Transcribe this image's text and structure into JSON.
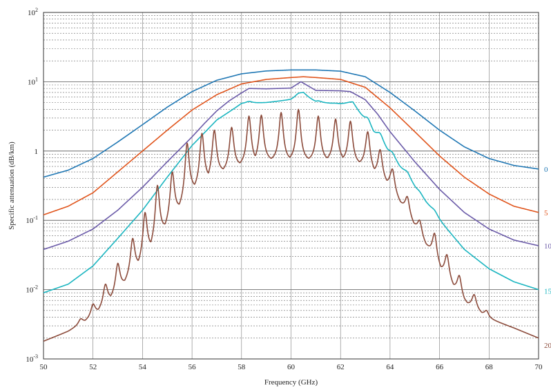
{
  "chart_data": {
    "type": "line",
    "title": "",
    "xlabel": "Frequency (GHz)",
    "ylabel": "Specific attenuation (dB/km)",
    "xlim": [
      50,
      70
    ],
    "ylim": [
      0.001,
      100
    ],
    "y_scale": "log",
    "grid": true,
    "x_ticks": [
      "50",
      "52",
      "54",
      "56",
      "58",
      "60",
      "62",
      "64",
      "66",
      "68",
      "70"
    ],
    "x_tick_values": [
      50,
      52,
      54,
      56,
      58,
      60,
      62,
      64,
      66,
      68,
      70
    ],
    "y_ticks": [
      {
        "value": 100,
        "base": "10",
        "exp": "2"
      },
      {
        "value": 10,
        "base": "10",
        "exp": "1"
      },
      {
        "value": 1,
        "base": "1",
        "exp": ""
      },
      {
        "value": 0.1,
        "base": "10",
        "exp": "-1"
      },
      {
        "value": 0.01,
        "base": "10",
        "exp": "-2"
      },
      {
        "value": 0.001,
        "base": "10",
        "exp": "-3"
      }
    ],
    "series": [
      {
        "name": "0",
        "color": "#1f77b4",
        "x": [
          50,
          51,
          52,
          53,
          54,
          55,
          56,
          57,
          58,
          59,
          60,
          61,
          62,
          63,
          64,
          65,
          66,
          67,
          68,
          69,
          70
        ],
        "y": [
          0.42,
          0.53,
          0.78,
          1.35,
          2.4,
          4.3,
          7.2,
          10.5,
          13.0,
          14.3,
          14.8,
          14.8,
          14.2,
          11.8,
          7.0,
          3.8,
          2.0,
          1.15,
          0.78,
          0.62,
          0.55
        ]
      },
      {
        "name": "5",
        "color": "#e0531a",
        "x": [
          50,
          51,
          52,
          53,
          54,
          55,
          56,
          57,
          58,
          59,
          60,
          60.5,
          61,
          62,
          63,
          64,
          65,
          66,
          67,
          68,
          69,
          70
        ],
        "y": [
          0.12,
          0.16,
          0.25,
          0.5,
          1.0,
          2.0,
          3.9,
          6.5,
          9.3,
          10.8,
          11.5,
          11.8,
          11.5,
          10.8,
          8.3,
          4.2,
          1.9,
          0.85,
          0.42,
          0.24,
          0.16,
          0.13
        ]
      },
      {
        "name": "10",
        "color": "#6a5aa8",
        "x": [
          50,
          51,
          52,
          53,
          54,
          55,
          56,
          56.5,
          57,
          57.5,
          58,
          58.3,
          59,
          60,
          60.4,
          61,
          62,
          62.4,
          63,
          63.5,
          64,
          65,
          66,
          67,
          68,
          69,
          70
        ],
        "y": [
          0.038,
          0.05,
          0.075,
          0.14,
          0.3,
          0.7,
          1.6,
          2.5,
          3.8,
          5.3,
          6.9,
          8.0,
          7.9,
          8.1,
          10.0,
          7.5,
          7.4,
          7.2,
          5.5,
          3.4,
          1.9,
          0.7,
          0.28,
          0.13,
          0.075,
          0.052,
          0.043
        ]
      },
      {
        "name": "15",
        "color": "#1ab5c0",
        "x": [
          50,
          51,
          52,
          53,
          54,
          55,
          56,
          57,
          58,
          59,
          60,
          60.5,
          61,
          62,
          62.5,
          63,
          64,
          65,
          66,
          67,
          68,
          69,
          70
        ],
        "y": [
          0.009,
          0.012,
          0.022,
          0.055,
          0.14,
          0.42,
          1.2,
          2.8,
          4.8,
          5.0,
          5.5,
          6.8,
          5.0,
          4.8,
          5.0,
          2.5,
          0.9,
          0.3,
          0.1,
          0.038,
          0.02,
          0.013,
          0.01
        ]
      },
      {
        "name": "20",
        "color": "#8b4a3a",
        "x": [
          50,
          51,
          52,
          53,
          54,
          55,
          56,
          57,
          58,
          59,
          60,
          61,
          62,
          63,
          64,
          65,
          66,
          67,
          68,
          69,
          70
        ],
        "y": [
          0.0018,
          0.0025,
          0.004,
          0.009,
          0.025,
          0.08,
          0.25,
          0.45,
          0.6,
          0.7,
          0.7,
          0.7,
          0.7,
          0.6,
          0.3,
          0.08,
          0.02,
          0.0065,
          0.0038,
          0.0028,
          0.002
        ]
      }
    ],
    "series_peaks": [
      {
        "series": "15",
        "x": [
          52.5,
          53.1,
          53.6,
          54.1,
          54.7,
          55.2,
          55.8,
          56.4,
          56.9,
          57.6,
          58.3,
          58.8,
          59.6,
          60.3,
          61.1,
          61.8,
          62.4,
          63.1,
          63.6,
          64.1,
          64.7,
          65.2,
          65.8,
          66.3,
          66.8
        ],
        "y": [
          0.028,
          0.05,
          0.085,
          0.15,
          0.26,
          0.45,
          0.9,
          1.6,
          2.4,
          3.2,
          5.2,
          4.6,
          4.8,
          6.8,
          5.3,
          4.9,
          5.1,
          3.0,
          1.8,
          0.95,
          0.5,
          0.26,
          0.14,
          0.075,
          0.04
        ]
      },
      {
        "series": "20",
        "x": [
          51.5,
          52.0,
          52.5,
          53.0,
          53.6,
          54.1,
          54.6,
          55.2,
          55.8,
          56.4,
          56.9,
          57.6,
          58.3,
          58.8,
          59.6,
          60.3,
          61.1,
          61.8,
          62.4,
          63.1,
          63.6,
          64.1,
          64.7,
          65.2,
          65.8,
          66.3,
          66.8,
          67.4,
          67.9
        ],
        "y": [
          0.0038,
          0.0062,
          0.012,
          0.024,
          0.055,
          0.13,
          0.32,
          0.5,
          1.3,
          1.8,
          2.0,
          2.2,
          3.2,
          3.3,
          3.6,
          4.0,
          3.2,
          2.9,
          2.7,
          1.9,
          1.05,
          0.55,
          0.22,
          0.1,
          0.065,
          0.032,
          0.016,
          0.0085,
          0.005
        ]
      }
    ]
  }
}
